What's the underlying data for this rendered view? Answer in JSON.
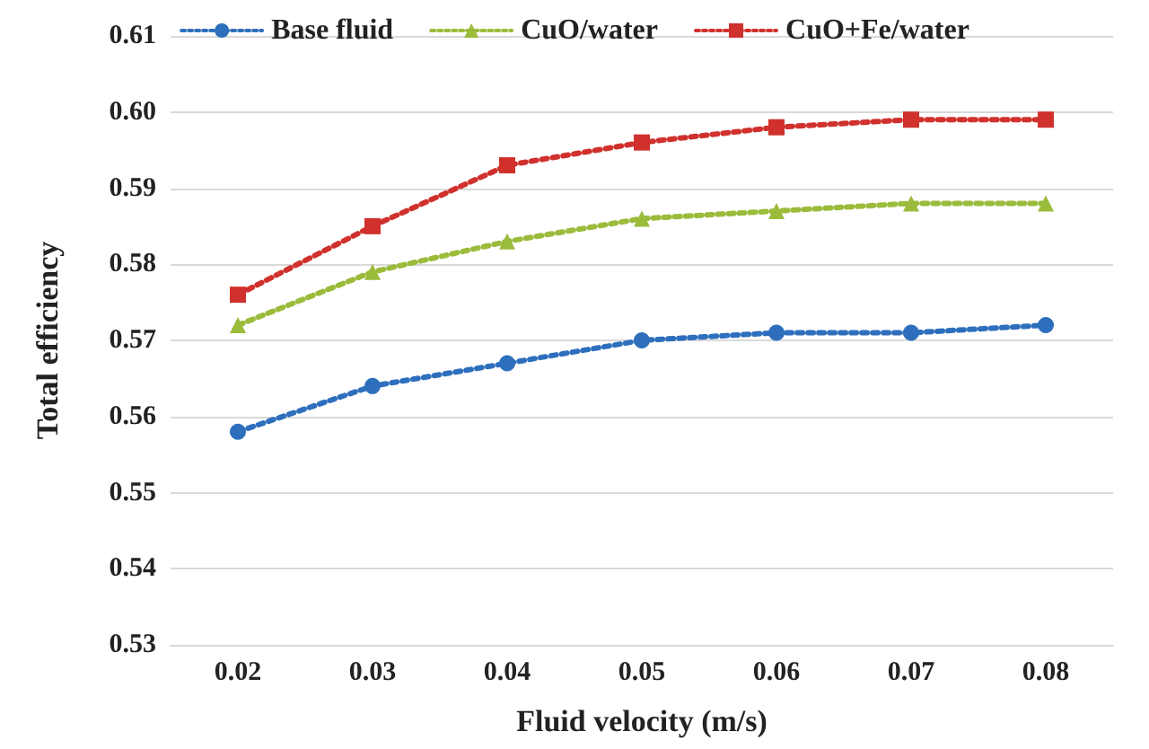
{
  "chart_data": {
    "type": "line",
    "xlabel": "Fluid velocity (m/s)",
    "ylabel": "Total efficiency",
    "categories": [
      "0.02",
      "0.03",
      "0.04",
      "0.05",
      "0.06",
      "0.07",
      "0.08"
    ],
    "series": [
      {
        "name": "Base fluid",
        "color": "#2e6fbd",
        "marker": "circle",
        "values": [
          0.558,
          0.564,
          0.567,
          0.57,
          0.571,
          0.571,
          0.572
        ]
      },
      {
        "name": "CuO/water",
        "color": "#9bbb3b",
        "marker": "triangle",
        "values": [
          0.572,
          0.579,
          0.583,
          0.586,
          0.587,
          0.588,
          0.588
        ]
      },
      {
        "name": "CuO+Fe/water",
        "color": "#d0312d",
        "marker": "square",
        "values": [
          0.576,
          0.585,
          0.593,
          0.596,
          0.598,
          0.599,
          0.599
        ]
      }
    ],
    "ylim": [
      0.53,
      0.61
    ],
    "yticks": [
      0.53,
      0.54,
      0.55,
      0.56,
      0.57,
      0.58,
      0.59,
      {
        "value": 0.6,
        "label": "0.60"
      },
      0.61
    ],
    "grid": "y",
    "legend": "top",
    "line_style": "dotted"
  }
}
